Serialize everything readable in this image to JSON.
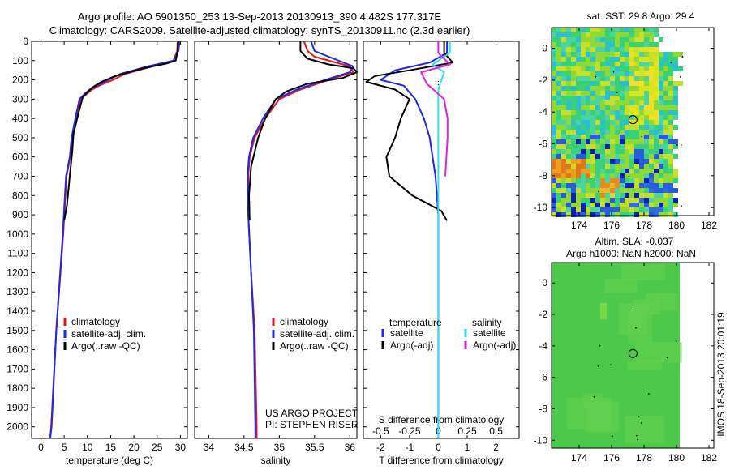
{
  "title": {
    "line1": "Argo profile: AO 5901350_253 13-Sep-2013 20130913_390 4.482S 177.317E",
    "line2": "Climatology: CARS2009. Satellite-adjusted climatology: synTS_20130911.nc (2.3d earlier)"
  },
  "colors": {
    "climatology": "#e8141e",
    "satellite": "#1e28e6",
    "argo": "#000000",
    "satellite_s": "#2ee0f0",
    "argo_s": "#e020e0"
  },
  "depth_ticks": [
    "0",
    "100",
    "200",
    "300",
    "400",
    "500",
    "600",
    "700",
    "800",
    "900",
    "1000",
    "1100",
    "1200",
    "1300",
    "1400",
    "1500",
    "1600",
    "1700",
    "1800",
    "1900",
    "2000"
  ],
  "chart_data": [
    {
      "type": "line",
      "xlabel": "temperature (deg C)",
      "xticks": [
        "0",
        "5",
        "10",
        "15",
        "20",
        "25",
        "30"
      ],
      "xlim": [
        -2,
        31.5
      ],
      "ylim": [
        2060,
        0
      ],
      "legend": [
        "climatology",
        "satellite-adj. clim.",
        "Argo(..raw -QC)"
      ],
      "series": [
        {
          "name": "climatology",
          "color_key": "climatology",
          "x": [
            29.4,
            29.3,
            28.5,
            24,
            18,
            15.5,
            12.5,
            11,
            9.5,
            8.5,
            7.6,
            6.7,
            6.3,
            5.5,
            4.8,
            3.3,
            2.2,
            2.0
          ],
          "y": [
            0,
            50,
            100,
            130,
            170,
            200,
            230,
            250,
            280,
            300,
            400,
            500,
            600,
            700,
            1000,
            1500,
            2000,
            2060
          ]
        },
        {
          "name": "satellite-adj. clim.",
          "color_key": "satellite",
          "x": [
            29.8,
            29.6,
            28.5,
            23,
            17,
            14.5,
            12,
            10.5,
            9.5,
            8.3,
            7.4,
            6.6,
            6.2,
            5.4,
            4.7,
            3.3,
            2.3,
            2.0
          ],
          "y": [
            0,
            50,
            100,
            130,
            170,
            200,
            230,
            250,
            270,
            300,
            400,
            500,
            600,
            700,
            1000,
            1500,
            2000,
            2060
          ]
        },
        {
          "name": "Argo(..raw -QC)",
          "color_key": "argo",
          "x": [
            29.5,
            29.4,
            29,
            27,
            22,
            16,
            13,
            11,
            10,
            9,
            8,
            7,
            6.7,
            6.2,
            5.6,
            5.0
          ],
          "y": [
            0,
            50,
            100,
            115,
            140,
            180,
            210,
            240,
            265,
            290,
            380,
            480,
            580,
            700,
            850,
            930
          ]
        }
      ]
    },
    {
      "type": "line",
      "xlabel": "salinity",
      "xticks": [
        "34",
        "34.5",
        "35",
        "35.5",
        "36"
      ],
      "xlim": [
        33.8,
        36.1
      ],
      "ylim": [
        2060,
        0
      ],
      "legend": [
        "climatology",
        "satellite-adj. clim.",
        "Argo(..raw -QC)"
      ],
      "credit": [
        "US ARGO PROJECT",
        "PI: STEPHEN RISER"
      ],
      "series": [
        {
          "name": "climatology",
          "color_key": "climatology",
          "x": [
            35.35,
            35.4,
            35.5,
            36.0,
            36.05,
            35.7,
            35.3,
            35.0,
            34.8,
            34.65,
            34.58,
            34.56,
            34.56,
            34.6,
            34.65,
            34.68,
            34.68
          ],
          "y": [
            0,
            50,
            80,
            130,
            160,
            200,
            250,
            300,
            400,
            500,
            600,
            700,
            900,
            1200,
            1500,
            2000,
            2060
          ]
        },
        {
          "name": "satellite-adj. clim.",
          "color_key": "satellite",
          "x": [
            35.45,
            35.5,
            35.7,
            36.05,
            36.0,
            35.65,
            35.25,
            34.95,
            34.77,
            34.63,
            34.57,
            34.55,
            34.56,
            34.6,
            34.64,
            34.66,
            34.66
          ],
          "y": [
            0,
            50,
            80,
            130,
            160,
            200,
            250,
            300,
            400,
            500,
            600,
            700,
            900,
            1200,
            1500,
            2000,
            2060
          ]
        },
        {
          "name": "Argo(..raw -QC)",
          "color_key": "argo",
          "x": [
            35.3,
            35.3,
            35.4,
            35.7,
            36.05,
            36.1,
            35.9,
            35.4,
            35.1,
            34.95,
            34.8,
            34.7,
            34.6,
            34.57,
            34.58
          ],
          "y": [
            0,
            50,
            90,
            120,
            140,
            160,
            190,
            220,
            260,
            300,
            400,
            500,
            650,
            800,
            930
          ]
        }
      ]
    },
    {
      "type": "line",
      "xlabel": "T difference from climatology",
      "xticks": [
        "-2",
        "-1",
        "0",
        "1",
        "2"
      ],
      "xlim": [
        -2.6,
        2.8
      ],
      "top_label": "S difference from climatology",
      "top_ticks": [
        "-0.5",
        "-0.25",
        "0",
        "0.25",
        "0.5"
      ],
      "top_xlim": [
        -0.65,
        0.7
      ],
      "ylim": [
        2060,
        0
      ],
      "legend_titles": [
        "temperature",
        "salinity"
      ],
      "legend": [
        "satellite",
        "Argo(-adj)",
        "satellite",
        "Argo(-adj)"
      ],
      "series": [
        {
          "name": "satellite",
          "axis": "T",
          "color_key": "satellite",
          "x": [
            0.3,
            0.3,
            -0.3,
            -1.5,
            -2.0,
            -1.2,
            -0.8,
            -0.5,
            -0.3,
            -0.2,
            -0.1,
            -0.05,
            0,
            0,
            0
          ],
          "y": [
            0,
            60,
            110,
            150,
            200,
            230,
            300,
            400,
            500,
            600,
            700,
            800,
            900,
            1500,
            2060
          ]
        },
        {
          "name": "Argo(-adj)",
          "axis": "T",
          "color_key": "argo",
          "x": [
            0.2,
            0.2,
            0.5,
            -1.0,
            -2.2,
            -2.5,
            -1.5,
            -1.0,
            -1.3,
            -1.5,
            -1.8,
            -1.7,
            -0.9,
            0.1,
            0.3
          ],
          "y": [
            0,
            60,
            110,
            150,
            180,
            210,
            250,
            300,
            400,
            500,
            600,
            700,
            800,
            880,
            930
          ]
        },
        {
          "name": "satellite",
          "axis": "S",
          "color_key": "satellite_s",
          "x": [
            0.1,
            0.1,
            -0.05,
            0.05,
            0.0,
            0.0,
            0.0,
            0.0
          ],
          "y": [
            0,
            60,
            120,
            160,
            250,
            500,
            1000,
            2060
          ]
        },
        {
          "name": "Argo(-adj)",
          "axis": "S",
          "color_key": "argo_s",
          "x": [
            0.0,
            0.0,
            0.1,
            -0.15,
            -0.1,
            0.05,
            0.08,
            0.08,
            0.07,
            0.06
          ],
          "y": [
            0,
            60,
            120,
            160,
            220,
            300,
            400,
            500,
            600,
            700
          ]
        }
      ]
    },
    {
      "type": "heatmap",
      "title": "sat. SST: 29.8 Argo: 29.4",
      "xticks": [
        "174",
        "176",
        "178",
        "180",
        "182"
      ],
      "yticks": [
        "0",
        "-2",
        "-4",
        "-6",
        "-8",
        "-10"
      ],
      "xlim": [
        172.3,
        182.3
      ],
      "ylim": [
        -10.5,
        1.3
      ],
      "coverage_xlim": [
        172.3,
        180.2
      ],
      "marker": {
        "lon": 177.317,
        "lat": -4.482
      }
    },
    {
      "type": "heatmap",
      "title": [
        "Altim. SLA: -0.037",
        "Argo h1000: NaN h2000: NaN"
      ],
      "xticks": [
        "174",
        "176",
        "178",
        "180",
        "182"
      ],
      "yticks": [
        "0",
        "-2",
        "-4",
        "-6",
        "-8",
        "-10"
      ],
      "xlim": [
        172.3,
        182.3
      ],
      "ylim": [
        -10.5,
        1.3
      ],
      "coverage_xlim": [
        172.3,
        180.2
      ],
      "marker": {
        "lon": 177.317,
        "lat": -4.482
      }
    }
  ],
  "footer_stamp": "IMOS 18-Sep-2013 20:01:19"
}
